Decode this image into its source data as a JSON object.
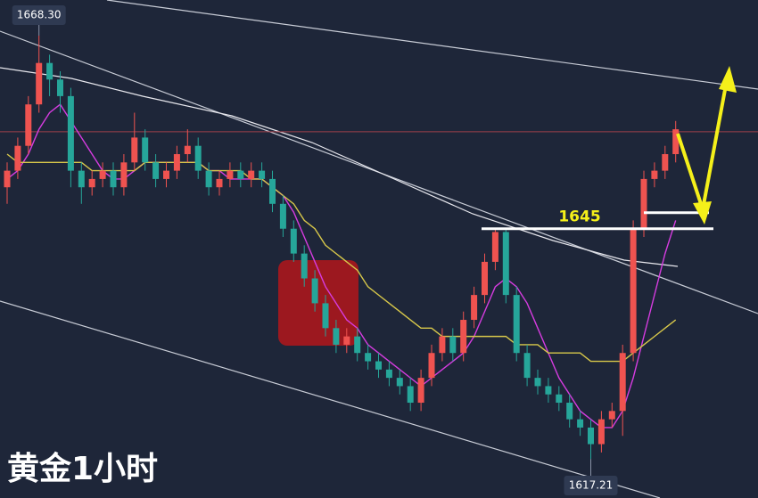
{
  "chart_data": {
    "type": "candlestick",
    "title": "黄金1小时",
    "up_color": "#ef5350",
    "down_color": "#26a69a",
    "ylim": [
      1612.5,
      1672.6
    ],
    "current_price": 1656.7,
    "high_label": {
      "value": 1668.3,
      "label": "1668.30"
    },
    "low_label": {
      "value": 1617.21,
      "label": "1617.21"
    },
    "level": {
      "value": 1645,
      "label": "1645"
    },
    "candles": [
      [
        1650,
        1653,
        1648,
        1652
      ],
      [
        1652,
        1656,
        1651,
        1655
      ],
      [
        1655,
        1661,
        1654,
        1660
      ],
      [
        1660,
        1668.3,
        1659,
        1665
      ],
      [
        1665,
        1666,
        1661,
        1663
      ],
      [
        1663,
        1664,
        1659,
        1661
      ],
      [
        1661,
        1662,
        1650,
        1652
      ],
      [
        1652,
        1653,
        1648,
        1650
      ],
      [
        1650,
        1652,
        1649,
        1651
      ],
      [
        1651,
        1653,
        1650,
        1652
      ],
      [
        1652,
        1653,
        1649,
        1650
      ],
      [
        1650,
        1654,
        1649,
        1653
      ],
      [
        1653,
        1659,
        1652,
        1656
      ],
      [
        1656,
        1657,
        1652,
        1653
      ],
      [
        1653,
        1654,
        1650,
        1651
      ],
      [
        1651,
        1653,
        1650,
        1652
      ],
      [
        1652,
        1655,
        1651,
        1654
      ],
      [
        1654,
        1657,
        1653,
        1655
      ],
      [
        1655,
        1656,
        1651,
        1652
      ],
      [
        1652,
        1653,
        1649,
        1650
      ],
      [
        1650,
        1652,
        1649,
        1651
      ],
      [
        1651,
        1653,
        1650,
        1652
      ],
      [
        1652,
        1653,
        1650,
        1651
      ],
      [
        1651,
        1653,
        1650,
        1652
      ],
      [
        1652,
        1653,
        1650,
        1651
      ],
      [
        1651,
        1652,
        1647,
        1648
      ],
      [
        1648,
        1649,
        1644,
        1645
      ],
      [
        1645,
        1646,
        1641,
        1642
      ],
      [
        1642,
        1643,
        1638,
        1639
      ],
      [
        1639,
        1640,
        1635,
        1636
      ],
      [
        1636,
        1637,
        1632,
        1633
      ],
      [
        1633,
        1634,
        1630,
        1631
      ],
      [
        1631,
        1633,
        1630,
        1632
      ],
      [
        1632,
        1633,
        1629,
        1630
      ],
      [
        1630,
        1631,
        1628,
        1629
      ],
      [
        1629,
        1630,
        1627,
        1628
      ],
      [
        1628,
        1629,
        1626,
        1627
      ],
      [
        1627,
        1628,
        1625,
        1626
      ],
      [
        1626,
        1627,
        1623,
        1624
      ],
      [
        1624,
        1628,
        1623,
        1627
      ],
      [
        1627,
        1631,
        1626,
        1630
      ],
      [
        1630,
        1633,
        1629,
        1632
      ],
      [
        1632,
        1633,
        1629,
        1630
      ],
      [
        1630,
        1635,
        1629,
        1634
      ],
      [
        1634,
        1638,
        1633,
        1637
      ],
      [
        1637,
        1642,
        1636,
        1641
      ],
      [
        1641,
        1645,
        1640,
        1644.6
      ],
      [
        1644.6,
        1645,
        1636,
        1637
      ],
      [
        1637,
        1638,
        1629,
        1630
      ],
      [
        1630,
        1631,
        1626,
        1627
      ],
      [
        1627,
        1628,
        1625,
        1626
      ],
      [
        1626,
        1627,
        1624,
        1625
      ],
      [
        1625,
        1626,
        1623,
        1624
      ],
      [
        1624,
        1625,
        1621,
        1622
      ],
      [
        1622,
        1623,
        1620,
        1621
      ],
      [
        1621,
        1622,
        1617.21,
        1619
      ],
      [
        1619,
        1623,
        1618,
        1622
      ],
      [
        1622,
        1624,
        1621,
        1623
      ],
      [
        1623,
        1631,
        1620,
        1630
      ],
      [
        1630,
        1646,
        1629,
        1645
      ],
      [
        1645,
        1652,
        1644,
        1651
      ],
      [
        1651,
        1653,
        1650,
        1652
      ],
      [
        1652,
        1655,
        1651,
        1654
      ],
      [
        1654,
        1658,
        1653,
        1657
      ]
    ],
    "lines": [
      {
        "color": "#d63ce0",
        "values": [
          1651,
          1652,
          1654,
          1657,
          1659,
          1660,
          1658,
          1656,
          1654,
          1652,
          1651,
          1651,
          1652,
          1653,
          1653,
          1653,
          1653,
          1653,
          1653,
          1652,
          1652,
          1651,
          1651,
          1651,
          1651,
          1650,
          1649,
          1647,
          1644,
          1641,
          1638,
          1636,
          1634,
          1633,
          1631,
          1630,
          1629,
          1628,
          1627,
          1626,
          1627,
          1628,
          1629,
          1630,
          1632,
          1635,
          1638,
          1639,
          1638,
          1636,
          1633,
          1630,
          1627,
          1625,
          1623,
          1622,
          1621,
          1621,
          1623,
          1627,
          1632,
          1637,
          1642,
          1646
        ]
      },
      {
        "color": "#d8c84a",
        "values": [
          1654,
          1653,
          1653,
          1653,
          1653,
          1653,
          1653,
          1653,
          1652,
          1652,
          1652,
          1652,
          1652,
          1653,
          1653,
          1653,
          1653,
          1653,
          1653,
          1652,
          1652,
          1652,
          1652,
          1651,
          1651,
          1650,
          1649,
          1648,
          1646,
          1645,
          1643,
          1642,
          1641,
          1640,
          1638,
          1637,
          1636,
          1635,
          1634,
          1633,
          1633,
          1632,
          1632,
          1632,
          1632,
          1632,
          1632,
          1632,
          1631,
          1631,
          1631,
          1630,
          1630,
          1630,
          1630,
          1629,
          1629,
          1629,
          1629,
          1630,
          1631,
          1632,
          1633,
          1634
        ]
      }
    ]
  }
}
